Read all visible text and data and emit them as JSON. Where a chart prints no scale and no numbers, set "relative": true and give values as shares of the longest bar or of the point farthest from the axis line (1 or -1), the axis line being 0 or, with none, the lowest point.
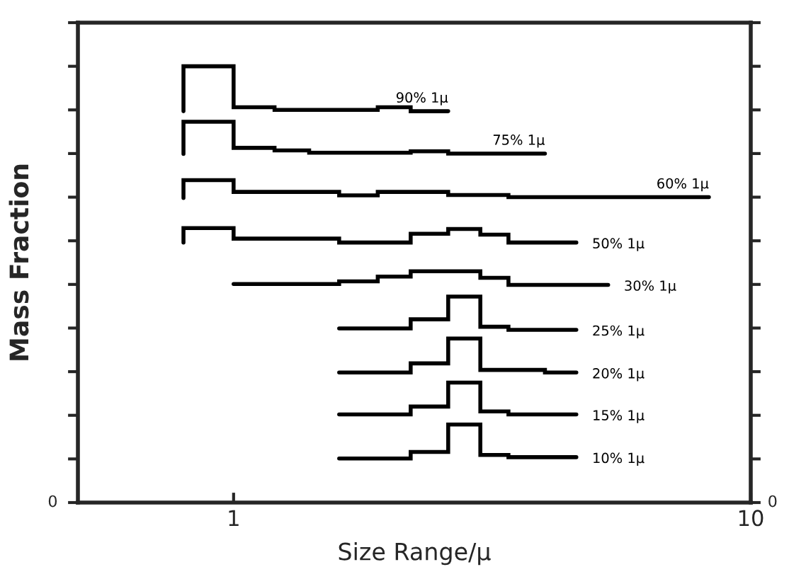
{
  "chart_data": {
    "type": "step",
    "xlabel": "Size Range/μ",
    "ylabel": "Mass Fraction",
    "relative": true,
    "log": "x",
    "xlim": [
      0.5,
      10
    ],
    "xticks": [
      1,
      10
    ],
    "grid": false,
    "legend": false,
    "annotations": [
      "0",
      "0"
    ],
    "series": [
      {
        "name": "90% 1μ",
        "color": "#000000",
        "x": [
          0.8,
          0.8,
          1.0,
          1.2,
          1.9,
          2.2,
          2.6
        ],
        "values": [
          0.897,
          1.0,
          0.906,
          0.9,
          0.906,
          0.897,
          0.897
        ]
      },
      {
        "name": "75% 1μ",
        "color": "#000000",
        "x": [
          0.8,
          0.8,
          1.0,
          1.2,
          1.4,
          2.2,
          2.6,
          4.0
        ],
        "values": [
          0.799,
          0.873,
          0.813,
          0.807,
          0.802,
          0.805,
          0.8,
          0.8
        ]
      },
      {
        "name": "60% 1μ",
        "color": "#000000",
        "x": [
          0.8,
          0.8,
          1.0,
          1.6,
          1.9,
          2.6,
          3.4,
          8.3
        ],
        "values": [
          0.698,
          0.739,
          0.712,
          0.704,
          0.712,
          0.705,
          0.7,
          0.7
        ]
      },
      {
        "name": "50% 1μ",
        "color": "#000000",
        "x": [
          0.8,
          0.8,
          1.0,
          1.6,
          2.2,
          2.6,
          3.0,
          3.4,
          4.6
        ],
        "values": [
          0.596,
          0.629,
          0.605,
          0.596,
          0.616,
          0.627,
          0.614,
          0.596,
          0.596
        ]
      },
      {
        "name": "30% 1μ",
        "color": "#000000",
        "x": [
          1.0,
          1.6,
          1.9,
          2.2,
          3.0,
          3.4,
          5.3
        ],
        "values": [
          0.501,
          0.507,
          0.518,
          0.53,
          0.515,
          0.499,
          0.499
        ]
      },
      {
        "name": "25% 1μ",
        "color": "#000000",
        "x": [
          1.6,
          2.2,
          2.6,
          3.0,
          3.4,
          4.6
        ],
        "values": [
          0.399,
          0.42,
          0.472,
          0.403,
          0.396,
          0.396
        ]
      },
      {
        "name": "20% 1μ",
        "color": "#000000",
        "x": [
          1.6,
          2.2,
          2.6,
          3.0,
          4.0,
          4.6
        ],
        "values": [
          0.298,
          0.319,
          0.376,
          0.304,
          0.298,
          0.298
        ]
      },
      {
        "name": "15% 1μ",
        "color": "#000000",
        "x": [
          1.6,
          2.2,
          2.6,
          3.0,
          3.4,
          4.6
        ],
        "values": [
          0.202,
          0.22,
          0.275,
          0.209,
          0.202,
          0.202
        ]
      },
      {
        "name": "10% 1μ",
        "color": "#000000",
        "x": [
          1.6,
          2.2,
          2.6,
          3.0,
          3.4,
          4.6
        ],
        "values": [
          0.101,
          0.116,
          0.179,
          0.109,
          0.104,
          0.104
        ]
      }
    ]
  }
}
